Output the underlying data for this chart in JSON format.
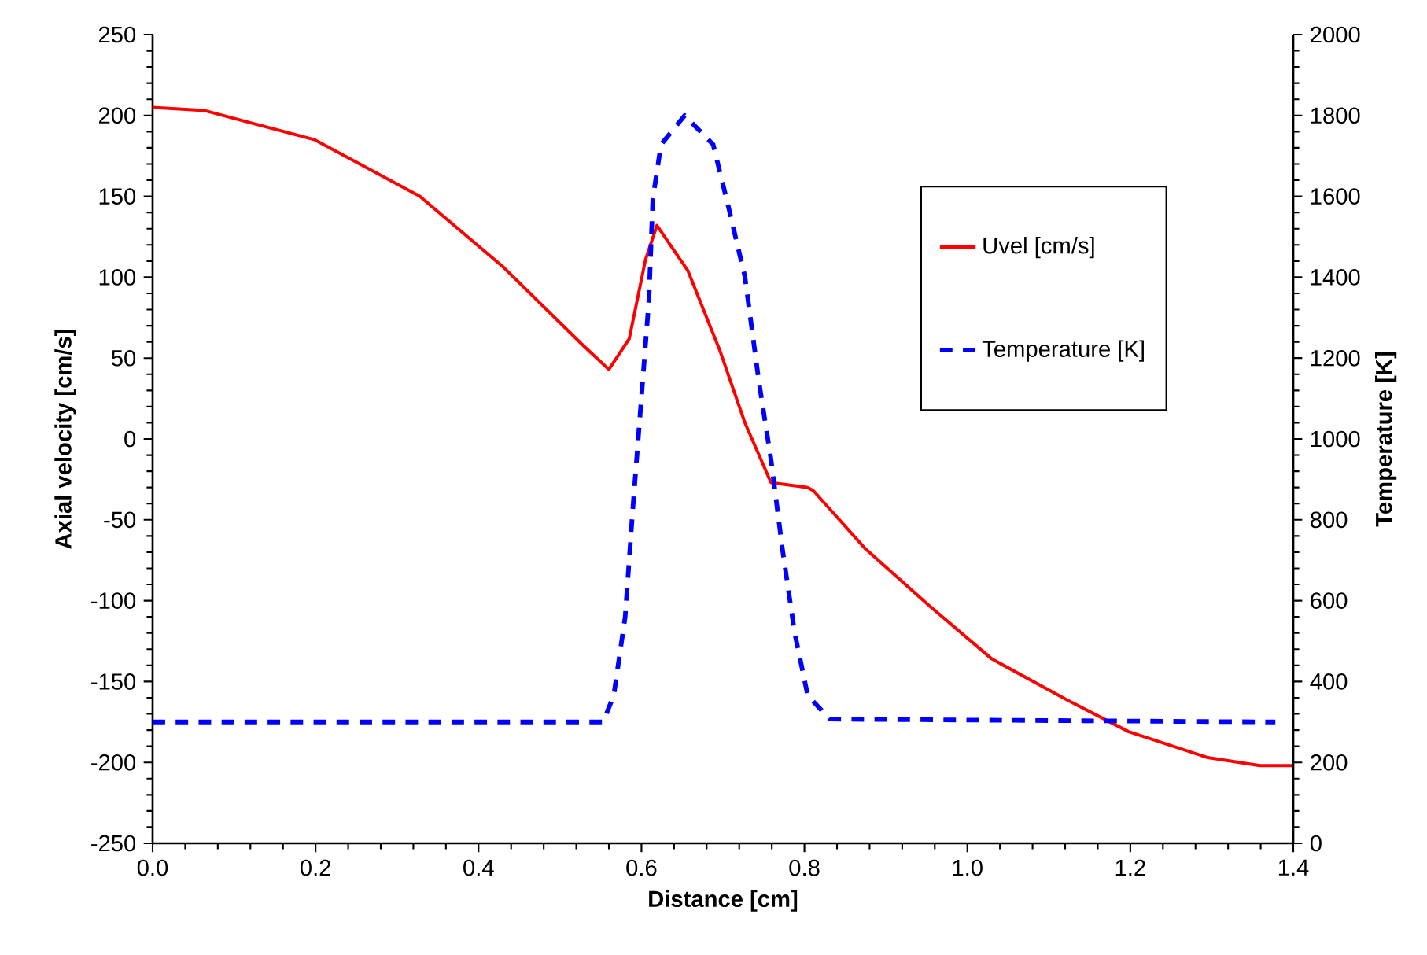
{
  "chart_data": {
    "type": "line",
    "xlabel": "Distance [cm]",
    "ylabel": "Axial velocity [cm/s]",
    "y2label": "Temperature [K]",
    "xlim": [
      0,
      1.4
    ],
    "xticks": [
      {
        "value": 0,
        "label": "0.0"
      },
      {
        "value": 0.2,
        "label": "0.2"
      },
      {
        "value": 0.4,
        "label": "0.4"
      },
      {
        "value": 0.6,
        "label": "0.6"
      },
      {
        "value": 0.8,
        "label": "0.8"
      },
      {
        "value": 1.0,
        "label": "1.0"
      },
      {
        "value": 1.2,
        "label": "1.2"
      },
      {
        "value": 1.4,
        "label": "1.4"
      }
    ],
    "ylim": [
      -250,
      250
    ],
    "yticks": [
      -250,
      -200,
      -150,
      -100,
      -50,
      0,
      50,
      100,
      150,
      200,
      250
    ],
    "y2lim": [
      0,
      2000
    ],
    "y2ticks": [
      0,
      200,
      400,
      600,
      800,
      1000,
      1200,
      1400,
      1600,
      1800,
      2000
    ],
    "grid": false,
    "legend": "top right",
    "series": [
      {
        "name": "Uvel [cm/s]",
        "color": "#ff0000",
        "line_style": "solid",
        "x": [
          0,
          0.064,
          0.199,
          0.328,
          0.431,
          0.528,
          0.56,
          0.585,
          0.605,
          0.619,
          0.657,
          0.696,
          0.727,
          0.759,
          0.804,
          0.811,
          0.875,
          0.953,
          1.03,
          1.121,
          1.198,
          1.295,
          1.359,
          1.4
        ],
        "values": [
          205,
          203,
          185,
          150,
          106,
          58,
          43,
          62,
          111,
          132,
          104,
          55,
          10,
          -27,
          -30,
          -32,
          -68,
          -103,
          -136,
          -161,
          -181,
          -197,
          -202,
          -202
        ]
      },
      {
        "name": "Temperature [K]",
        "color": "#0000ff",
        "line_style": "dashed",
        "axis": "y2",
        "x": [
          0,
          0.553,
          0.566,
          0.58,
          0.589,
          0.599,
          0.609,
          0.614,
          0.624,
          0.653,
          0.688,
          0.707,
          0.727,
          0.744,
          0.759,
          0.773,
          0.788,
          0.804,
          0.831,
          1.378
        ],
        "values": [
          300,
          300,
          366,
          560,
          817,
          1078,
          1339,
          1595,
          1728,
          1800,
          1728,
          1572,
          1401,
          1144,
          949,
          728,
          521,
          366,
          307,
          300
        ]
      }
    ]
  }
}
